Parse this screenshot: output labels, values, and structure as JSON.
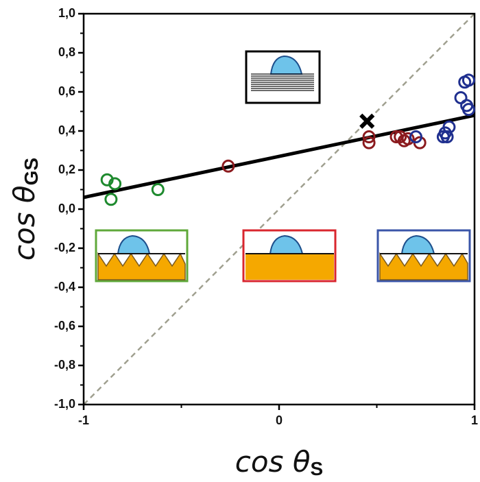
{
  "chart_data": {
    "type": "scatter",
    "xlabel": "cos θ",
    "xlabel_sub": "S",
    "ylabel": "cos θ",
    "ylabel_sub": "GS",
    "xlim": [
      -1,
      1
    ],
    "ylim": [
      -1,
      1
    ],
    "xticks": [
      -1,
      0,
      1
    ],
    "yticks": [
      {
        "value": -1,
        "label": "-1,0"
      },
      {
        "value": -0.8,
        "label": "-0,8"
      },
      {
        "value": -0.6,
        "label": "-0,6"
      },
      {
        "value": -0.4,
        "label": "-0,4"
      },
      {
        "value": -0.2,
        "label": "-0,2"
      },
      {
        "value": 0,
        "label": "0,0"
      },
      {
        "value": 0.2,
        "label": "0,2"
      },
      {
        "value": 0.4,
        "label": "0,4"
      },
      {
        "value": 0.6,
        "label": "0,6"
      },
      {
        "value": 0.8,
        "label": "0,8"
      },
      {
        "value": 1,
        "label": "1,0"
      }
    ],
    "series": [
      {
        "color": "#1e8a2e",
        "marker": "circle",
        "x": [
          -0.88,
          -0.84,
          -0.86,
          -0.62
        ],
        "y": [
          0.15,
          0.13,
          0.05,
          0.1
        ]
      },
      {
        "color": "#8b1a1e",
        "marker": "circle",
        "x": [
          -0.26,
          0.46,
          0.46,
          0.6,
          0.62,
          0.66,
          0.72,
          0.64
        ],
        "y": [
          0.22,
          0.37,
          0.34,
          0.37,
          0.37,
          0.36,
          0.34,
          0.35
        ]
      },
      {
        "color": "#1f2f8f",
        "marker": "circle",
        "x": [
          0.7,
          0.85,
          0.86,
          0.87,
          0.84,
          0.93,
          0.95,
          0.97,
          0.97,
          0.96
        ],
        "y": [
          0.37,
          0.39,
          0.37,
          0.42,
          0.37,
          0.57,
          0.65,
          0.66,
          0.51,
          0.53
        ]
      },
      {
        "color": "#000000",
        "marker": "cross",
        "x": [
          0.45
        ],
        "y": [
          0.45
        ]
      }
    ],
    "fit_line": {
      "color": "#000000",
      "x": [
        -1,
        1
      ],
      "y": [
        0.06,
        0.48
      ]
    },
    "reference_line": {
      "color": "#a0a090",
      "x": [
        -1,
        1
      ],
      "y": [
        -1,
        1
      ]
    }
  }
}
